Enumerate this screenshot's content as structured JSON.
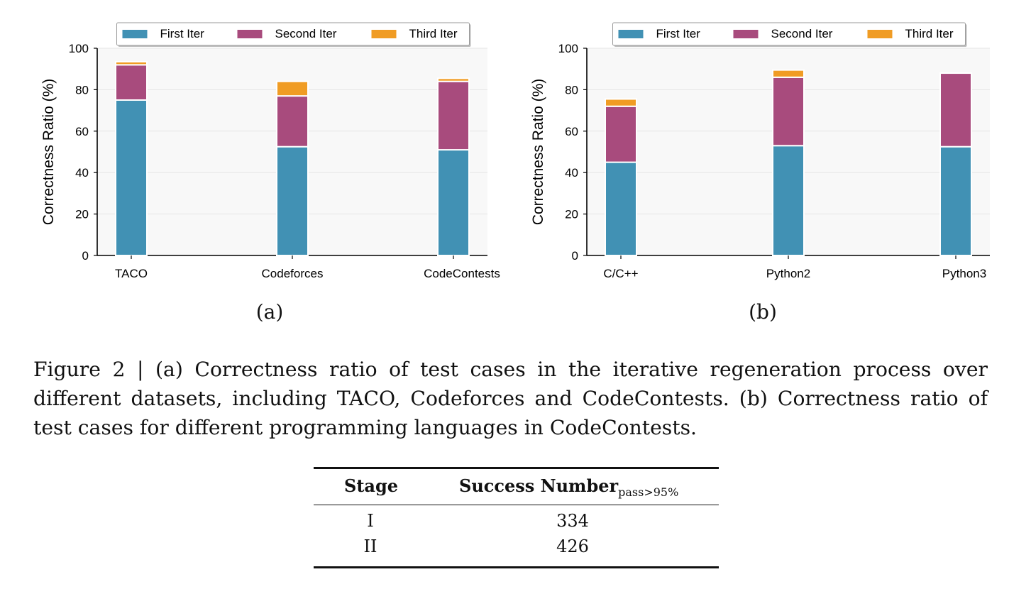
{
  "chart_data": [
    {
      "type": "bar",
      "stacked": true,
      "panel_label": "(a)",
      "categories": [
        "TACO",
        "Codeforces",
        "CodeContests"
      ],
      "series": [
        {
          "name": "First Iter",
          "values": [
            75,
            52.5,
            51
          ]
        },
        {
          "name": "Second Iter",
          "values": [
            17,
            24.5,
            33
          ]
        },
        {
          "name": "Third Iter",
          "values": [
            1.5,
            7,
            1.5
          ]
        }
      ],
      "colors": [
        "#4191b4",
        "#a84b7d",
        "#f09c24"
      ],
      "ylabel": "Correctness Ratio (%)",
      "ylim": [
        0,
        100
      ],
      "yticks": [
        "0",
        "20",
        "40",
        "60",
        "80",
        "100"
      ],
      "grid": "horizontal",
      "legend": "top-center"
    },
    {
      "type": "bar",
      "stacked": true,
      "panel_label": "(b)",
      "categories": [
        "C/C++",
        "Python2",
        "Python3"
      ],
      "series": [
        {
          "name": "First Iter",
          "values": [
            45,
            53,
            52.5
          ]
        },
        {
          "name": "Second Iter",
          "values": [
            27,
            33,
            35.5
          ]
        },
        {
          "name": "Third Iter",
          "values": [
            3.5,
            3.5,
            0
          ]
        }
      ],
      "colors": [
        "#4191b4",
        "#a84b7d",
        "#f09c24"
      ],
      "ylabel": "Correctness Ratio (%)",
      "ylim": [
        0,
        100
      ],
      "yticks": [
        "0",
        "20",
        "40",
        "60",
        "80",
        "100"
      ],
      "grid": "horizontal",
      "legend": "top-center"
    }
  ],
  "caption": "Figure 2 | (a) Correctness ratio of test cases in the iterative regeneration process over different datasets, including TACO, Codeforces and CodeContests. (b) Correctness ratio of test cases for different programming languages in CodeContests.",
  "table": {
    "headers": {
      "stage": "Stage",
      "success": "Success Number",
      "success_sub": "pass>95%"
    },
    "rows": [
      {
        "stage": "I",
        "value": "334"
      },
      {
        "stage": "II",
        "value": "426"
      }
    ]
  }
}
